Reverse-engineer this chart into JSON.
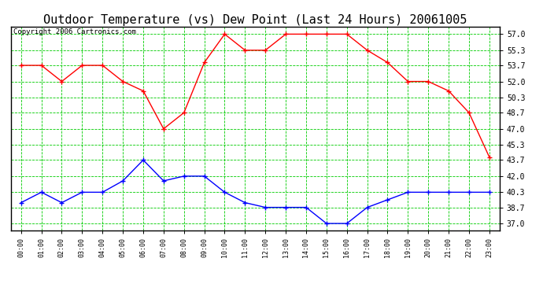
{
  "title": "Outdoor Temperature (vs) Dew Point (Last 24 Hours) 20061005",
  "copyright_text": "Copyright 2006 Cartronics.com",
  "hours": [
    "00:00",
    "01:00",
    "02:00",
    "03:00",
    "04:00",
    "05:00",
    "06:00",
    "07:00",
    "08:00",
    "09:00",
    "10:00",
    "11:00",
    "12:00",
    "13:00",
    "14:00",
    "15:00",
    "16:00",
    "17:00",
    "18:00",
    "19:00",
    "20:00",
    "21:00",
    "22:00",
    "23:00"
  ],
  "temp": [
    53.7,
    53.7,
    52.0,
    53.7,
    53.7,
    52.0,
    51.0,
    47.0,
    48.7,
    54.0,
    57.0,
    55.3,
    55.3,
    57.0,
    57.0,
    57.0,
    57.0,
    55.3,
    54.0,
    52.0,
    52.0,
    51.0,
    48.7,
    44.0
  ],
  "dew": [
    39.2,
    40.3,
    39.2,
    40.3,
    40.3,
    41.5,
    43.7,
    41.5,
    42.0,
    42.0,
    40.3,
    39.2,
    38.7,
    38.7,
    38.7,
    37.0,
    37.0,
    38.7,
    39.5,
    40.3,
    40.3,
    40.3,
    40.3,
    40.3
  ],
  "temp_color": "#FF0000",
  "dew_color": "#0000FF",
  "bg_color": "#FFFFFF",
  "grid_color": "#00CC00",
  "title_fontsize": 11,
  "copyright_fontsize": 6.5,
  "yticks": [
    37.0,
    38.7,
    40.3,
    42.0,
    43.7,
    45.3,
    47.0,
    48.7,
    50.3,
    52.0,
    53.7,
    55.3,
    57.0
  ],
  "ylim_min": 36.3,
  "ylim_max": 57.8
}
